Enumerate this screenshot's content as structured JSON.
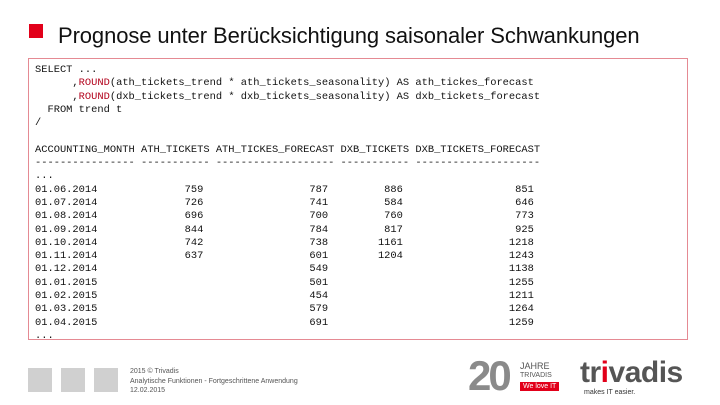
{
  "slide": {
    "title": "Prognose unter Berücksichtigung saisonaler Schwankungen"
  },
  "code": {
    "select_line": "SELECT ...",
    "line2_prefix": "      ,",
    "line2_kw": "ROUND",
    "line2_rest": "(ath_tickets_trend * ath_tickets_seasonality) AS ath_tickes_forecast",
    "line3_prefix": "      ,",
    "line3_kw": "ROUND",
    "line3_rest": "(dxb_tickets_trend * dxb_tickets_seasonality) AS dxb_tickets_forecast",
    "from_line": "  FROM trend t",
    "slash_line": "/",
    "header_line": "ACCOUNTING_MONTH ATH_TICKETS ATH_TICKES_FORECAST DXB_TICKETS DXB_TICKETS_FORECAST",
    "dash_line": "---------------- ----------- ------------------- ----------- --------------------",
    "ellipsis_top": "...",
    "ellipsis_bottom": "...",
    "rows": [
      "01.06.2014              759                 787         886                  851",
      "01.07.2014              726                 741         584                  646",
      "01.08.2014              696                 700         760                  773",
      "01.09.2014              844                 784         817                  925",
      "01.10.2014              742                 738        1161                 1218",
      "01.11.2014              637                 601        1204                 1243",
      "01.12.2014                                  549                             1138",
      "01.01.2015                                  501                             1255",
      "01.02.2015                                  454                             1211",
      "01.03.2015                                  579                             1264",
      "01.04.2015                                  691                             1259"
    ]
  },
  "footer": {
    "line1": "2015 © Trivadis",
    "line2": "Analytische Funktionen - Fortgeschrittene Anwendung",
    "line3": "12.02.2015"
  },
  "logos": {
    "anniversary_number": "20",
    "anniversary_jahre": "JAHRE",
    "anniversary_trivadis": "TRIVADIS",
    "anniversary_slogan": "We love IT",
    "brand_prefix": "tr",
    "brand_i": "i",
    "brand_suffix": "vadis",
    "tagline": "makes IT easier."
  },
  "colors": {
    "accent": "#e2001a",
    "border": "#e58a93"
  }
}
